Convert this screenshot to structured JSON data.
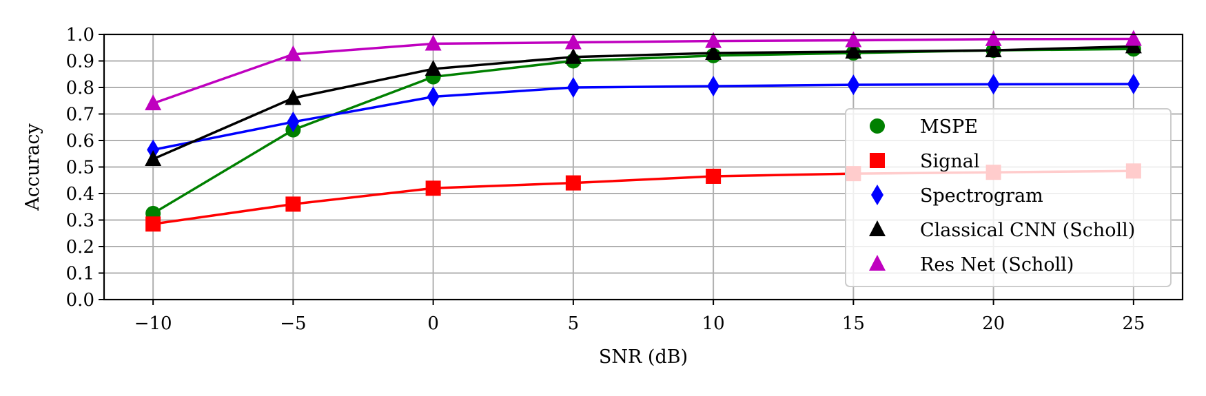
{
  "chart_data": {
    "type": "line",
    "title": "",
    "xlabel": "SNR (dB)",
    "ylabel": "Accuracy",
    "x": [
      -10,
      -5,
      0,
      5,
      10,
      15,
      20,
      25
    ],
    "xlim": [
      -11.75,
      26.75
    ],
    "ylim": [
      0.0,
      1.0
    ],
    "xticks": [
      -10,
      -5,
      0,
      5,
      10,
      15,
      20,
      25
    ],
    "xtick_labels": [
      "−10",
      "−5",
      "0",
      "5",
      "10",
      "15",
      "20",
      "25"
    ],
    "yticks": [
      0.0,
      0.1,
      0.2,
      0.3,
      0.4,
      0.5,
      0.6,
      0.7,
      0.8,
      0.9,
      1.0
    ],
    "ytick_labels": [
      "0.0",
      "0.1",
      "0.2",
      "0.3",
      "0.4",
      "0.5",
      "0.6",
      "0.7",
      "0.8",
      "0.9",
      "1.0"
    ],
    "grid": true,
    "legend_position": "center-right",
    "series": [
      {
        "name": "MSPE",
        "marker": "circle",
        "color": "#008000",
        "values": [
          0.325,
          0.64,
          0.84,
          0.9,
          0.92,
          0.93,
          0.94,
          0.945
        ]
      },
      {
        "name": "Signal",
        "marker": "square",
        "color": "#ff0000",
        "values": [
          0.285,
          0.36,
          0.42,
          0.44,
          0.465,
          0.475,
          0.48,
          0.485
        ]
      },
      {
        "name": "Spectrogram",
        "marker": "diamond",
        "color": "#0000ff",
        "values": [
          0.565,
          0.67,
          0.765,
          0.8,
          0.805,
          0.81,
          0.812,
          0.813
        ]
      },
      {
        "name": "Classical CNN (Scholl)",
        "marker": "triangle",
        "color": "#000000",
        "values": [
          0.53,
          0.76,
          0.87,
          0.915,
          0.93,
          0.935,
          0.94,
          0.955
        ]
      },
      {
        "name": "Res Net (Scholl)",
        "marker": "triangle",
        "color": "#bf00bf",
        "values": [
          0.74,
          0.925,
          0.965,
          0.97,
          0.975,
          0.978,
          0.982,
          0.983
        ]
      }
    ]
  }
}
